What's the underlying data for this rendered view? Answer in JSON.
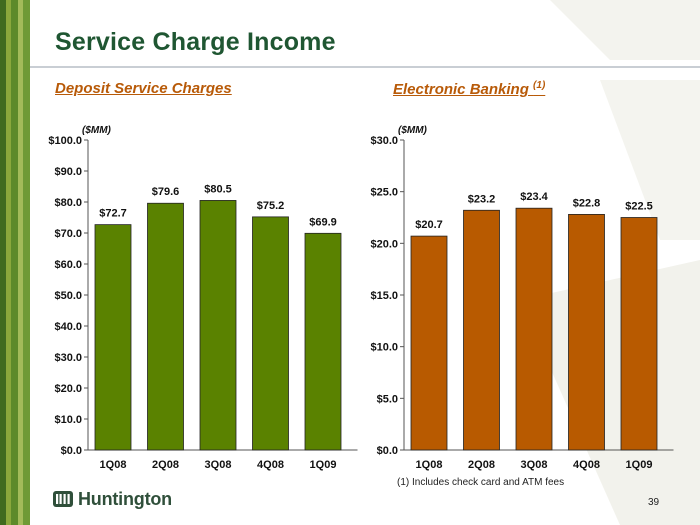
{
  "title": "Service Charge Income",
  "colors": {
    "green_bar": "#5a8200",
    "orange_bar": "#b85a00",
    "title_green": "#1f5632",
    "subtitle_orange": "#b85a08"
  },
  "charts": {
    "deposit": {
      "subtitle": "Deposit Service Charges",
      "unit": "($MM)"
    },
    "electronic": {
      "subtitle": "Electronic Banking ",
      "subtitle_note": "(1)",
      "unit": "($MM)"
    }
  },
  "chart_data": [
    {
      "type": "bar",
      "title": "Deposit Service Charges",
      "unit": "($MM)",
      "categories": [
        "1Q08",
        "2Q08",
        "3Q08",
        "4Q08",
        "1Q09"
      ],
      "values": [
        72.7,
        79.6,
        80.5,
        75.2,
        69.9
      ],
      "data_labels": [
        "$72.7",
        "$79.6",
        "$80.5",
        "$75.2",
        "$69.9"
      ],
      "ylim": [
        0,
        100
      ],
      "yticks": [
        0,
        10,
        20,
        30,
        40,
        50,
        60,
        70,
        80,
        90,
        100
      ],
      "ytick_labels": [
        "$0.0",
        "$10.0",
        "$20.0",
        "$30.0",
        "$40.0",
        "$50.0",
        "$60.0",
        "$70.0",
        "$80.0",
        "$90.0",
        "$100.0"
      ],
      "color": "#5a8200",
      "grid": false
    },
    {
      "type": "bar",
      "title": "Electronic Banking (1)",
      "unit": "($MM)",
      "categories": [
        "1Q08",
        "2Q08",
        "3Q08",
        "4Q08",
        "1Q09"
      ],
      "values": [
        20.7,
        23.2,
        23.4,
        22.8,
        22.5
      ],
      "data_labels": [
        "$20.7",
        "$23.2",
        "$23.4",
        "$22.8",
        "$22.5"
      ],
      "ylim": [
        0,
        30
      ],
      "yticks": [
        0,
        5,
        10,
        15,
        20,
        25,
        30
      ],
      "ytick_labels": [
        "$0.0",
        "$5.0",
        "$10.0",
        "$15.0",
        "$20.0",
        "$25.0",
        "$30.0"
      ],
      "color": "#b85a00",
      "grid": false
    }
  ],
  "footnote": "(1) Includes check card and ATM fees",
  "logo_text": "Huntington",
  "page_number": "39"
}
